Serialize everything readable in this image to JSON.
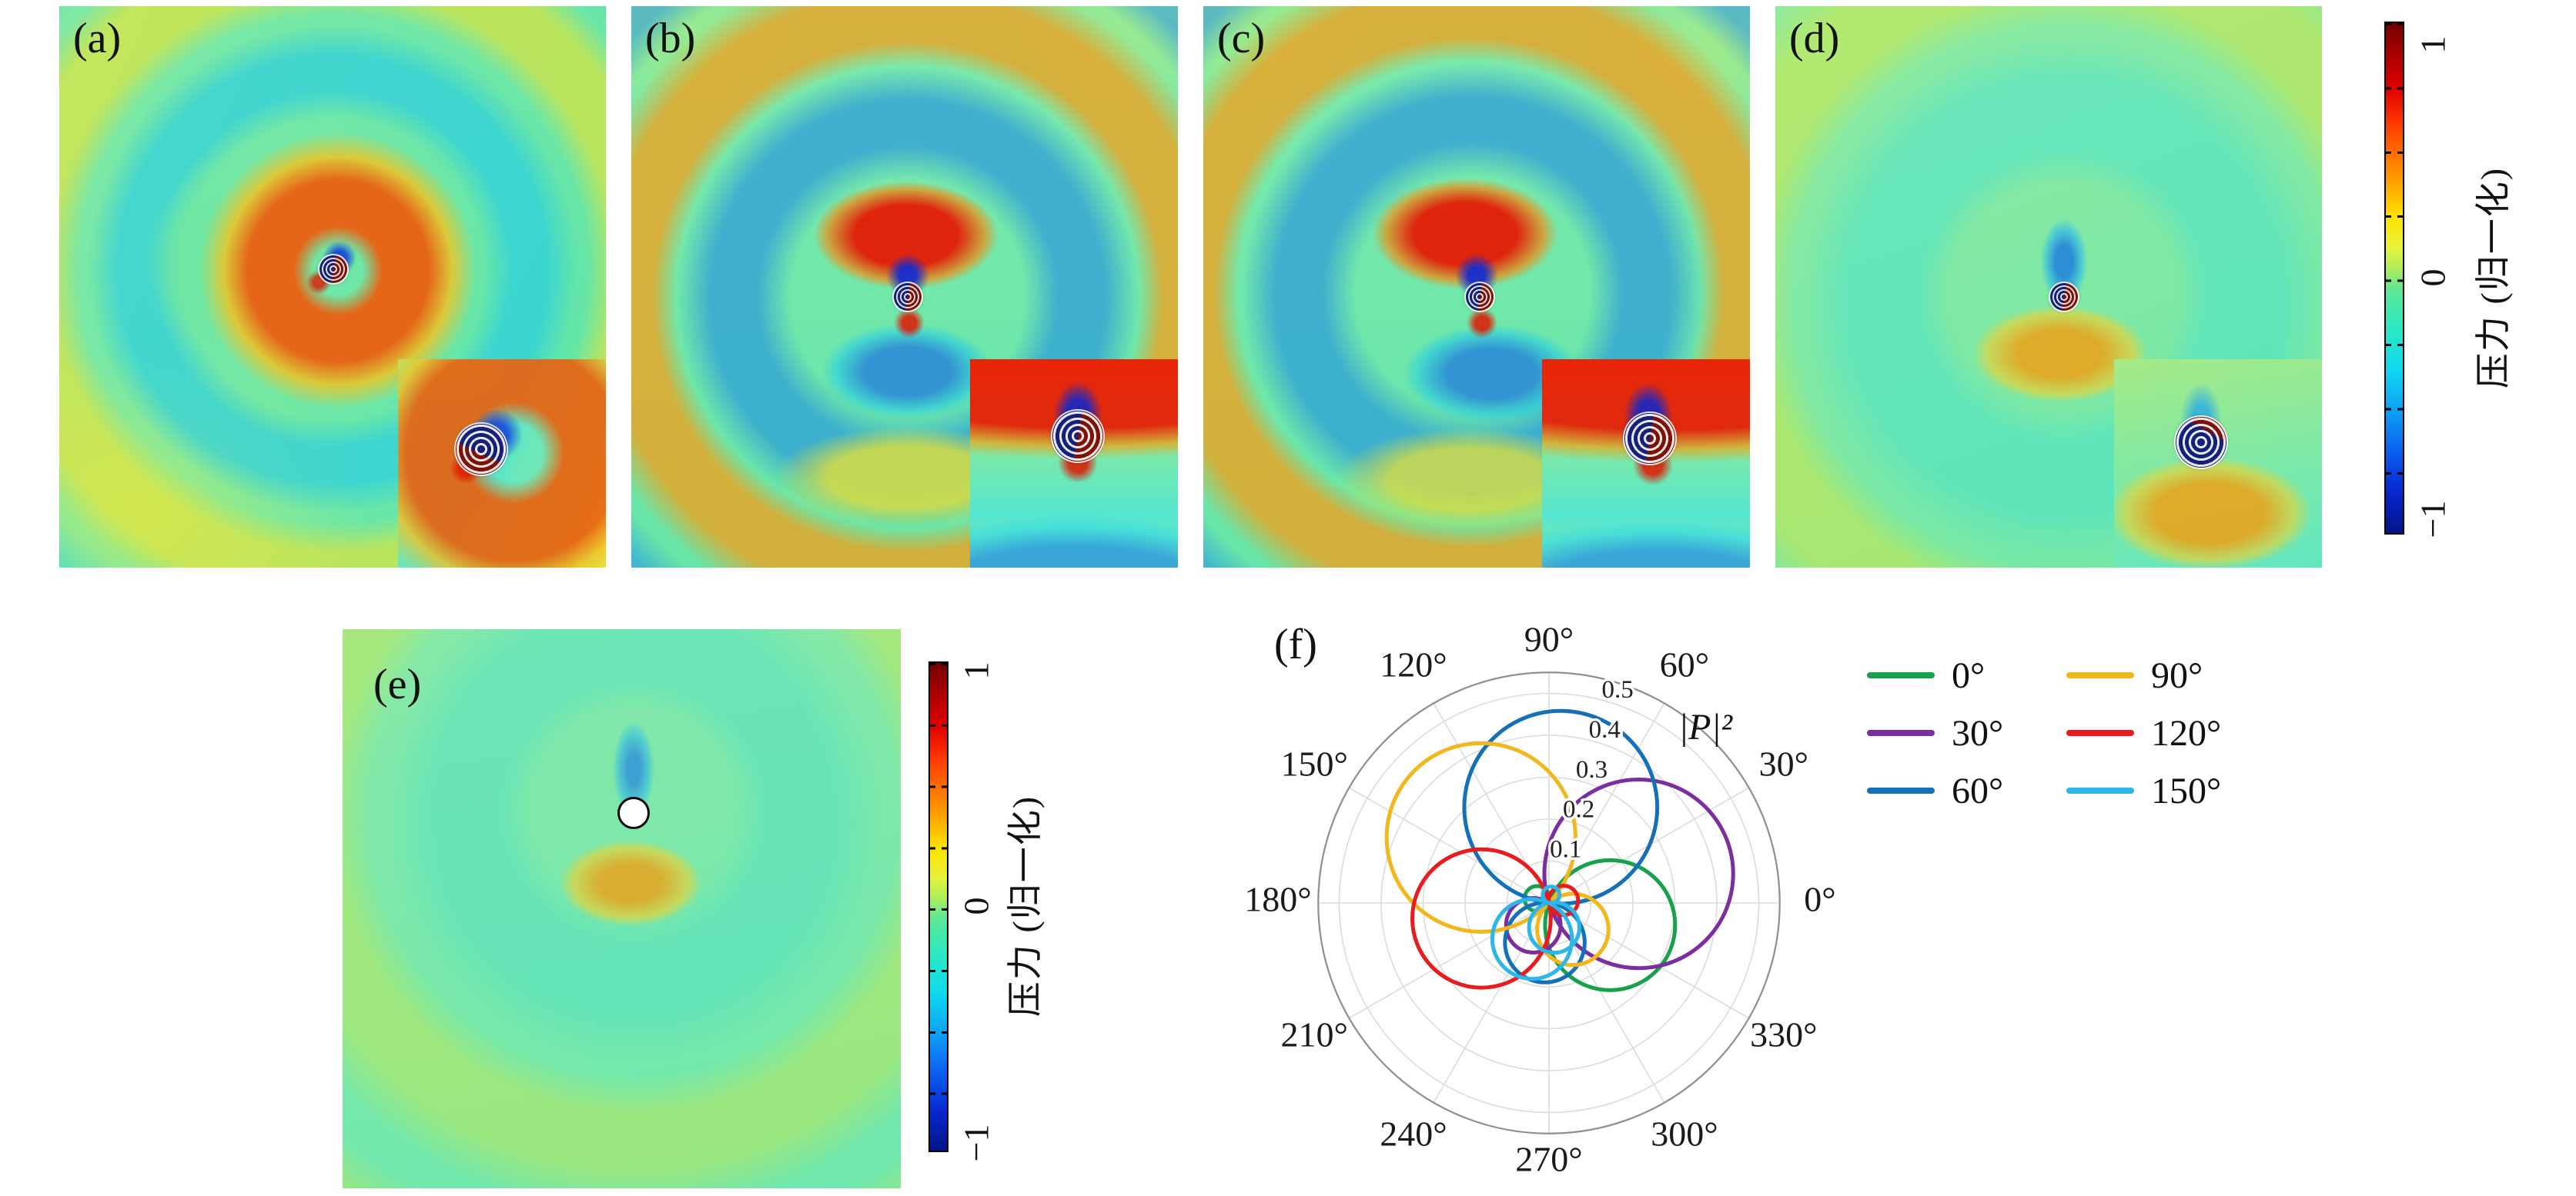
{
  "panels": [
    {
      "id": "a",
      "label": "(a)",
      "content": "normalized scattered pressure field, spiral wavefronts toward the right",
      "has_inset": true
    },
    {
      "id": "b",
      "label": "(b)",
      "content": "normalized scattered pressure field, strong upward arc wavefronts",
      "has_inset": true
    },
    {
      "id": "c",
      "label": "(c)",
      "content": "normalized scattered pressure field, tilted upward arc wavefronts",
      "has_inset": true
    },
    {
      "id": "d",
      "label": "(d)",
      "content": "normalized scattered pressure field, weak spiral wavefronts",
      "has_inset": true
    },
    {
      "id": "e",
      "label": "(e)",
      "content": "normalized scattered pressure field of a bare cylinder (white disc)",
      "has_inset": false
    },
    {
      "id": "f",
      "label": "(f)",
      "content": "polar plot of far-field scattered power |P|² for six incidence angles"
    }
  ],
  "colorbars": [
    {
      "id": "main",
      "title": "压力 (归一化)",
      "ticks": [
        "1",
        "0",
        "−1"
      ],
      "max": 1,
      "min": -1,
      "colormap": "jet"
    },
    {
      "id": "panel-e",
      "title": "压力 (归一化)",
      "ticks": [
        "1",
        "0",
        "−1"
      ],
      "max": 1,
      "min": -1,
      "colormap": "jet"
    }
  ],
  "chart_data": {
    "type": "line",
    "projection": "polar",
    "title": "",
    "r_axis_label": "|P|²",
    "r_ticks": [
      0.1,
      0.2,
      0.3,
      0.4,
      0.5
    ],
    "r_tick_labels": [
      "0.1",
      "0.2",
      "0.3",
      "0.4",
      "0.5"
    ],
    "r_max": 0.55,
    "angle_ticks_deg": [
      0,
      30,
      60,
      90,
      120,
      150,
      180,
      210,
      240,
      270,
      300,
      330
    ],
    "angle_tick_labels": [
      "0°",
      "30°",
      "60°",
      "90°",
      "120°",
      "150°",
      "180°",
      "210°",
      "240°",
      "270°",
      "300°",
      "330°"
    ],
    "grid": true,
    "legend_position": "right-outside",
    "series": [
      {
        "name": "0°",
        "color": "#17a14b",
        "lobes": [
          {
            "direction_deg": 340,
            "peak": 0.31
          },
          {
            "direction_deg": 160,
            "peak": 0.06
          }
        ]
      },
      {
        "name": "30°",
        "color": "#7b2f9f",
        "lobes": [
          {
            "direction_deg": 18,
            "peak": 0.45
          },
          {
            "direction_deg": 235,
            "peak": 0.13
          }
        ]
      },
      {
        "name": "60°",
        "color": "#1471b8",
        "lobes": [
          {
            "direction_deg": 83,
            "peak": 0.46
          },
          {
            "direction_deg": 264,
            "peak": 0.19
          }
        ]
      },
      {
        "name": "90°",
        "color": "#f2b71c",
        "lobes": [
          {
            "direction_deg": 136,
            "peak": 0.45
          },
          {
            "direction_deg": 312,
            "peak": 0.17
          }
        ]
      },
      {
        "name": "120°",
        "color": "#e81b1e",
        "lobes": [
          {
            "direction_deg": 193,
            "peak": 0.33
          },
          {
            "direction_deg": 10,
            "peak": 0.07
          }
        ]
      },
      {
        "name": "150°",
        "color": "#2cb6e9",
        "lobes": [
          {
            "direction_deg": 245,
            "peak": 0.19
          },
          {
            "direction_deg": 282,
            "peak": 0.12
          },
          {
            "direction_deg": 75,
            "peak": 0.04
          }
        ]
      }
    ],
    "note": "each lobe rendered as r = peak·cos(θ−direction), i.e. a circle through the pole"
  }
}
